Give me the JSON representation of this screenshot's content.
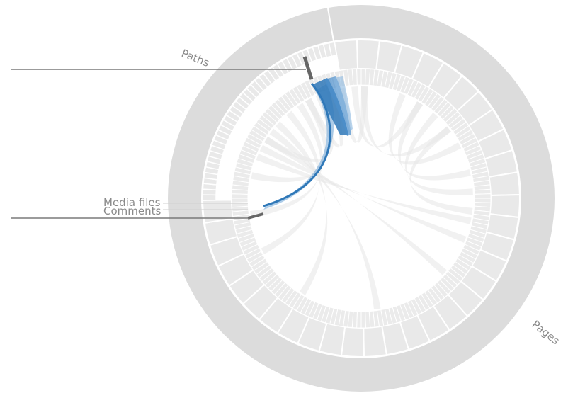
{
  "labels": {
    "paths": "Paths",
    "media_files": "Media files",
    "comments": "Comments",
    "pages": "Pages"
  },
  "colors": {
    "outer_ring": "#dcdcdc",
    "inner_ring": "#e9e9e9",
    "ring_divider": "#ffffff",
    "ribbon_faint": "#e6e6e6",
    "ribbon_highlight": "#2f78b8",
    "ribbon_highlight_light": "#6aa3d6",
    "leader_line": "#7a7a7a",
    "label_text": "#8a8a8a"
  }
}
